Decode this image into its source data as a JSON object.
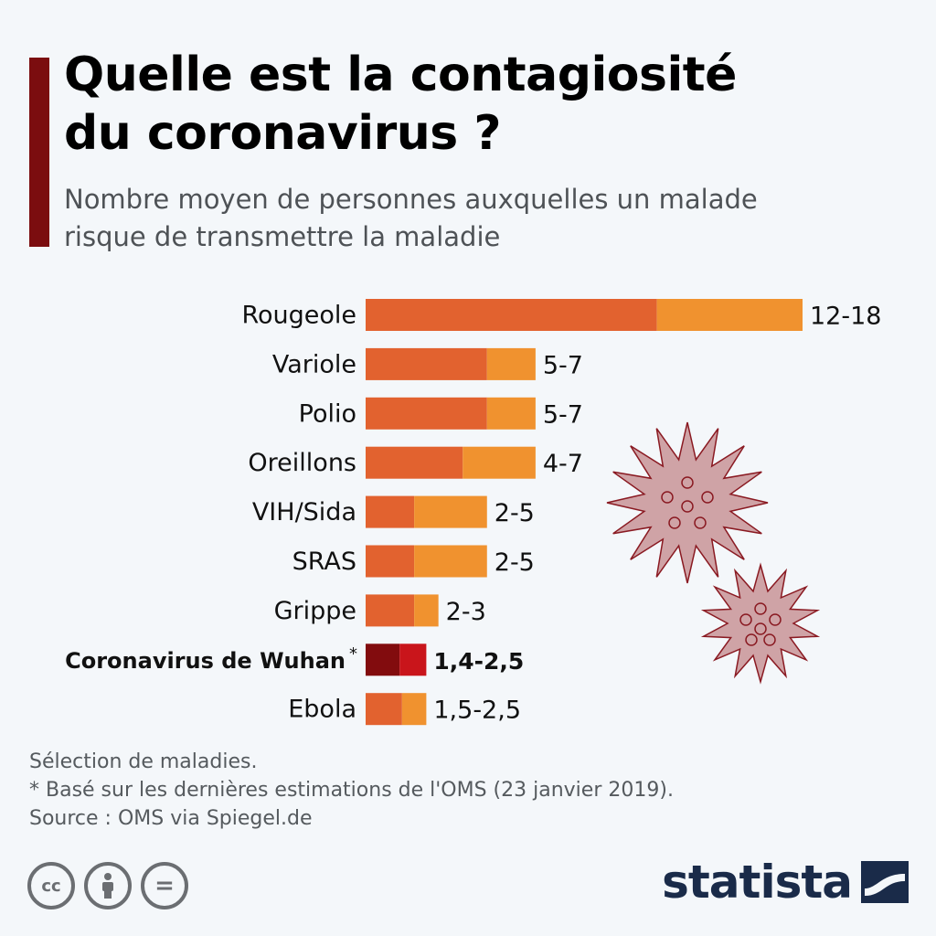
{
  "header": {
    "title_line1": "Quelle est la contagiosité",
    "title_line2": "du coronavirus ?",
    "subtitle_line1": "Nombre moyen de personnes auxquelles un malade",
    "subtitle_line2": "risque de transmettre la maladie"
  },
  "chart_data": {
    "type": "bar",
    "orientation": "horizontal",
    "stacked_range": true,
    "categories": [
      "Rougeole",
      "Variole",
      "Polio",
      "Oreillons",
      "VIH/Sida",
      "SRAS",
      "Grippe",
      "Coronavirus de Wuhan",
      "Ebola"
    ],
    "ranges": [
      [
        12,
        18
      ],
      [
        5,
        7
      ],
      [
        5,
        7
      ],
      [
        4,
        7
      ],
      [
        2,
        5
      ],
      [
        2,
        5
      ],
      [
        2,
        3
      ],
      [
        1.4,
        2.5
      ],
      [
        1.5,
        2.5
      ]
    ],
    "value_labels": [
      "12-18",
      "5-7",
      "5-7",
      "4-7",
      "2-5",
      "2-5",
      "2-3",
      "1,4-2,5",
      "1,5-2,5"
    ],
    "highlight_index": 7,
    "highlight_marker": "*",
    "xlim": [
      0,
      18
    ],
    "colors": {
      "low": "#e2622f",
      "high": "#f0922f",
      "highlight_low": "#820c0e",
      "highlight_high": "#c9151b"
    }
  },
  "footnotes": {
    "line1": "Sélection de maladies.",
    "line2": "* Basé sur les dernières estimations de l'OMS (23 janvier 2019).",
    "line3": "Source : OMS via Spiegel.de"
  },
  "license": {
    "cc": "cc",
    "by_icon": "person-icon",
    "nd": "="
  },
  "brand": {
    "name": "statista"
  },
  "decor": {
    "virus_color": "#cfa3a6",
    "virus_stroke": "#8a1a22"
  }
}
